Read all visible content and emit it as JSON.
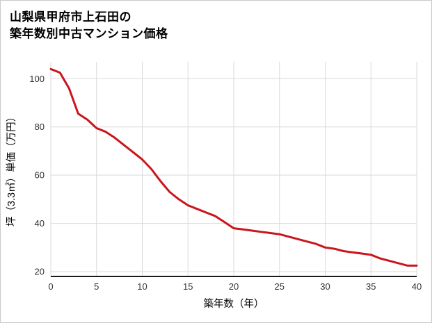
{
  "page": {
    "title_line1": "山梨県甲府市上石田の",
    "title_line2": "築年数別中古マンション価格"
  },
  "chart_data": {
    "type": "line",
    "title": "山梨県甲府市上石田の築年数別中古マンション価格",
    "xlabel": "築年数（年）",
    "ylabel": "坪（3.3㎡）単価（万円）",
    "x": [
      0,
      1,
      2,
      3,
      4,
      5,
      6,
      7,
      8,
      9,
      10,
      11,
      12,
      13,
      14,
      15,
      16,
      17,
      18,
      19,
      20,
      21,
      22,
      23,
      24,
      25,
      26,
      27,
      28,
      29,
      30,
      31,
      32,
      33,
      34,
      35,
      36,
      37,
      38,
      39,
      40
    ],
    "values": [
      104,
      102.5,
      96,
      85.5,
      83,
      79.5,
      78,
      75.5,
      72.5,
      69.5,
      66.5,
      62.5,
      57.5,
      53,
      50,
      47.5,
      46,
      44.5,
      43,
      40.5,
      38,
      37.5,
      37,
      36.5,
      36,
      35.5,
      34.5,
      33.5,
      32.5,
      31.5,
      30,
      29.5,
      28.5,
      28,
      27.5,
      27,
      25.5,
      24.5,
      23.5,
      22.5,
      22.5
    ],
    "xticks": [
      0,
      5,
      10,
      15,
      20,
      25,
      30,
      35,
      40
    ],
    "yticks": [
      20,
      40,
      60,
      80,
      100
    ],
    "xlim": [
      0,
      40
    ],
    "ylim": [
      18,
      107
    ],
    "grid": true,
    "legend": "none",
    "line_color": "#C9151B",
    "grid_color": "#D9D9D9",
    "axis_color": "#1A1A1A",
    "tick_color": "#333333"
  }
}
